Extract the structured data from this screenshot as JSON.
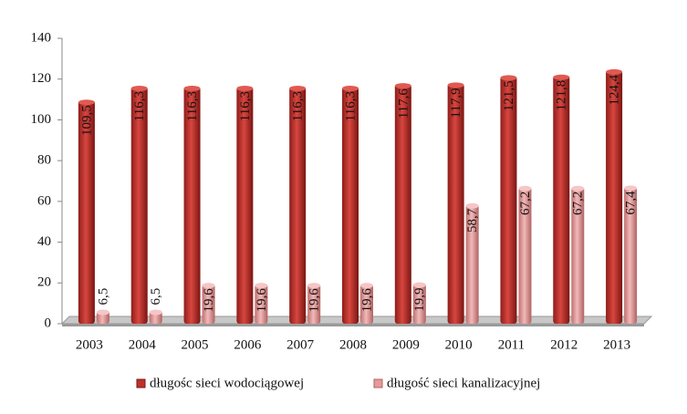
{
  "chart_data": {
    "type": "bar",
    "categories": [
      "2003",
      "2004",
      "2005",
      "2006",
      "2007",
      "2008",
      "2009",
      "2010",
      "2011",
      "2012",
      "2013"
    ],
    "series": [
      {
        "name": "długośc sieci wodociągowej",
        "color": "#c0302b",
        "values": [
          109.5,
          116.3,
          116.3,
          116.3,
          116.3,
          116.3,
          117.6,
          117.9,
          121.5,
          121.8,
          124.4
        ],
        "value_labels": [
          "109,5",
          "116,3",
          "116,3",
          "116,3",
          "116,3",
          "116,3",
          "117,6",
          "117,9",
          "121,5",
          "121,8",
          "124,4"
        ]
      },
      {
        "name": "długość sieci kanalizacyjnej",
        "color": "#e39a9a",
        "values": [
          6.5,
          6.5,
          19.6,
          19.6,
          19.6,
          19.6,
          19.9,
          58.7,
          67.2,
          67.2,
          67.4
        ],
        "value_labels": [
          "6,5",
          "6,5",
          "19,6",
          "19,6",
          "19,6",
          "19,6",
          "19,9",
          "58,7",
          "67,2",
          "67,2",
          "67,4"
        ]
      }
    ],
    "ylim": [
      0,
      140
    ],
    "yticks": [
      0,
      20,
      40,
      60,
      80,
      100,
      120,
      140
    ],
    "grid": false,
    "legend": "bottom"
  }
}
